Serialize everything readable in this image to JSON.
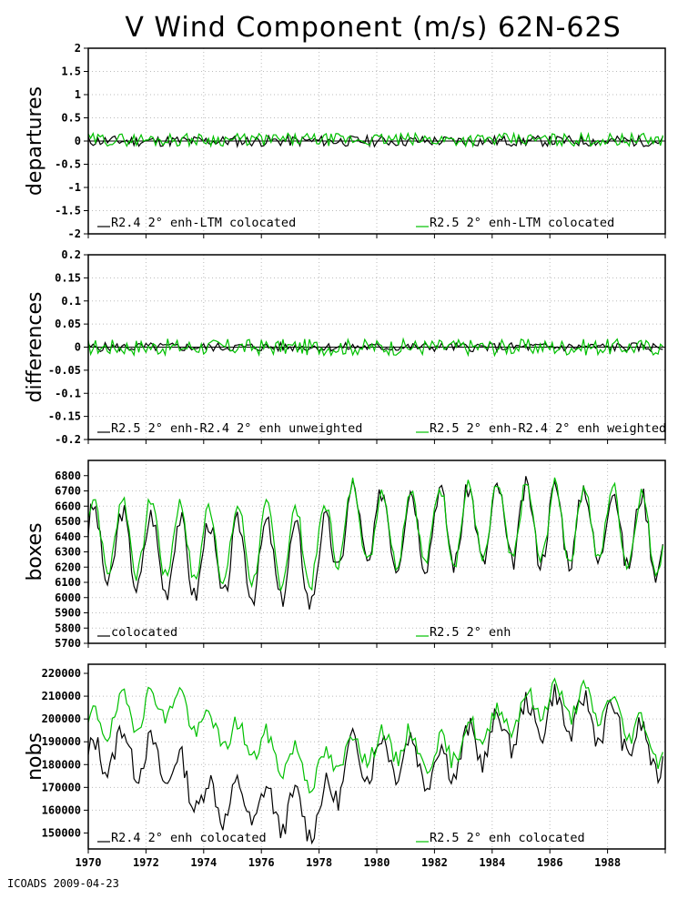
{
  "title": "V Wind Component (m/s) 62N-62S",
  "footer": "ICOADS 2009-04-23",
  "colors": {
    "black_series": "#000000",
    "green_series": "#00c000",
    "grid": "#bbbbbb"
  },
  "x_axis": {
    "ticks": [
      "1970",
      "1972",
      "1974",
      "1976",
      "1978",
      "1980",
      "1982",
      "1984",
      "1986",
      "1988"
    ]
  },
  "chart_data": [
    {
      "type": "line",
      "ylabel": "departures",
      "ylim": [
        -2,
        2
      ],
      "yticks": [
        "2",
        "1.5",
        "1",
        "0.5",
        "0",
        "-0.5",
        "-1",
        "-1.5",
        "-2"
      ],
      "grid": true,
      "zero_line": true,
      "series": [
        {
          "name": "R2.4 2° enh-LTM colocated",
          "color": "#000000",
          "mean": 0.0,
          "amp": 0.12,
          "seed": 11,
          "legend": "R2.4 2° enh-LTM colocated"
        },
        {
          "name": "R2.5 2° enh-LTM colocated",
          "color": "#00c000",
          "mean": 0.03,
          "amp": 0.14,
          "seed": 29,
          "legend": "R2.5 2° enh-LTM colocated"
        }
      ]
    },
    {
      "type": "line",
      "ylabel": "differences",
      "ylim": [
        -0.2,
        0.2
      ],
      "yticks": [
        "0.2",
        "0.15",
        "0.1",
        "0.05",
        "0",
        "-0.05",
        "-0.1",
        "-0.15",
        "-0.2"
      ],
      "grid": true,
      "zero_line": true,
      "series": [
        {
          "name": "R2.5 2° enh-R2.4 2° enh unweighted",
          "color": "#000000",
          "mean": 0.0,
          "amp": 0.01,
          "seed": 5,
          "legend": "R2.5 2° enh-R2.4 2° enh unweighted"
        },
        {
          "name": "R2.5 2° enh-R2.4 2° enh weighted",
          "color": "#00c000",
          "mean": 0.0,
          "amp": 0.018,
          "seed": 17,
          "legend": "R2.5 2° enh-R2.4 2° enh weighted"
        }
      ]
    },
    {
      "type": "line",
      "ylabel": "boxes",
      "ylim": [
        5700,
        6900
      ],
      "yticks": [
        "6800",
        "6700",
        "6600",
        "6500",
        "6400",
        "6300",
        "6200",
        "6100",
        "6000",
        "5900",
        "5800",
        "5700"
      ],
      "grid": true,
      "series": [
        {
          "name": "colocated",
          "color": "#000000",
          "legend": "colocated",
          "anchors": [
            [
              1970,
              6350
            ],
            [
              1972,
              6300
            ],
            [
              1974,
              6250
            ],
            [
              1976,
              6250
            ],
            [
              1978,
              6200
            ],
            [
              1978.9,
              6500
            ],
            [
              1980,
              6450
            ],
            [
              1984,
              6480
            ],
            [
              1988,
              6480
            ],
            [
              1989.9,
              6400
            ]
          ],
          "season": 250,
          "noise": 70,
          "seed": 3
        },
        {
          "name": "R2.5 2° enh",
          "color": "#00c000",
          "legend": "R2.5 2° enh",
          "anchors": [
            [
              1970,
              6420
            ],
            [
              1972,
              6400
            ],
            [
              1974,
              6350
            ],
            [
              1976,
              6350
            ],
            [
              1978,
              6320
            ],
            [
              1978.9,
              6520
            ],
            [
              1980,
              6460
            ],
            [
              1984,
              6490
            ],
            [
              1988,
              6490
            ],
            [
              1989.9,
              6410
            ]
          ],
          "season": 250,
          "noise": 50,
          "seed": 7
        }
      ]
    },
    {
      "type": "line",
      "ylabel": "nobs",
      "ylim": [
        143000,
        224000
      ],
      "yticks": [
        "220000",
        "210000",
        "200000",
        "190000",
        "180000",
        "170000",
        "160000",
        "150000"
      ],
      "grid": true,
      "series": [
        {
          "name": "R2.4 2° enh colocated",
          "color": "#000000",
          "legend": "R2.4 2° enh colocated",
          "anchors": [
            [
              1970,
              180000
            ],
            [
              1971,
              188000
            ],
            [
              1973,
              178000
            ],
            [
              1974,
              165000
            ],
            [
              1976,
              162000
            ],
            [
              1978,
              157000
            ],
            [
              1979,
              182000
            ],
            [
              1981,
              185000
            ],
            [
              1982,
              178000
            ],
            [
              1983,
              186000
            ],
            [
              1985,
              198000
            ],
            [
              1986,
              203000
            ],
            [
              1988,
              199000
            ],
            [
              1989.9,
              182000
            ]
          ],
          "season": 9000,
          "noise": 5000,
          "seed": 13
        },
        {
          "name": "R2.5 2° enh colocated",
          "color": "#00c000",
          "legend": "R2.5 2° enh colocated",
          "anchors": [
            [
              1970,
              195000
            ],
            [
              1971,
              202000
            ],
            [
              1973,
              208000
            ],
            [
              1974,
              197000
            ],
            [
              1976,
              188000
            ],
            [
              1978,
              176000
            ],
            [
              1979,
              187000
            ],
            [
              1981,
              189000
            ],
            [
              1982,
              183000
            ],
            [
              1983,
              191000
            ],
            [
              1985,
              204000
            ],
            [
              1986,
              209000
            ],
            [
              1988,
              205000
            ],
            [
              1989.9,
              187000
            ]
          ],
          "season": 7000,
          "noise": 4000,
          "seed": 19
        }
      ]
    }
  ]
}
